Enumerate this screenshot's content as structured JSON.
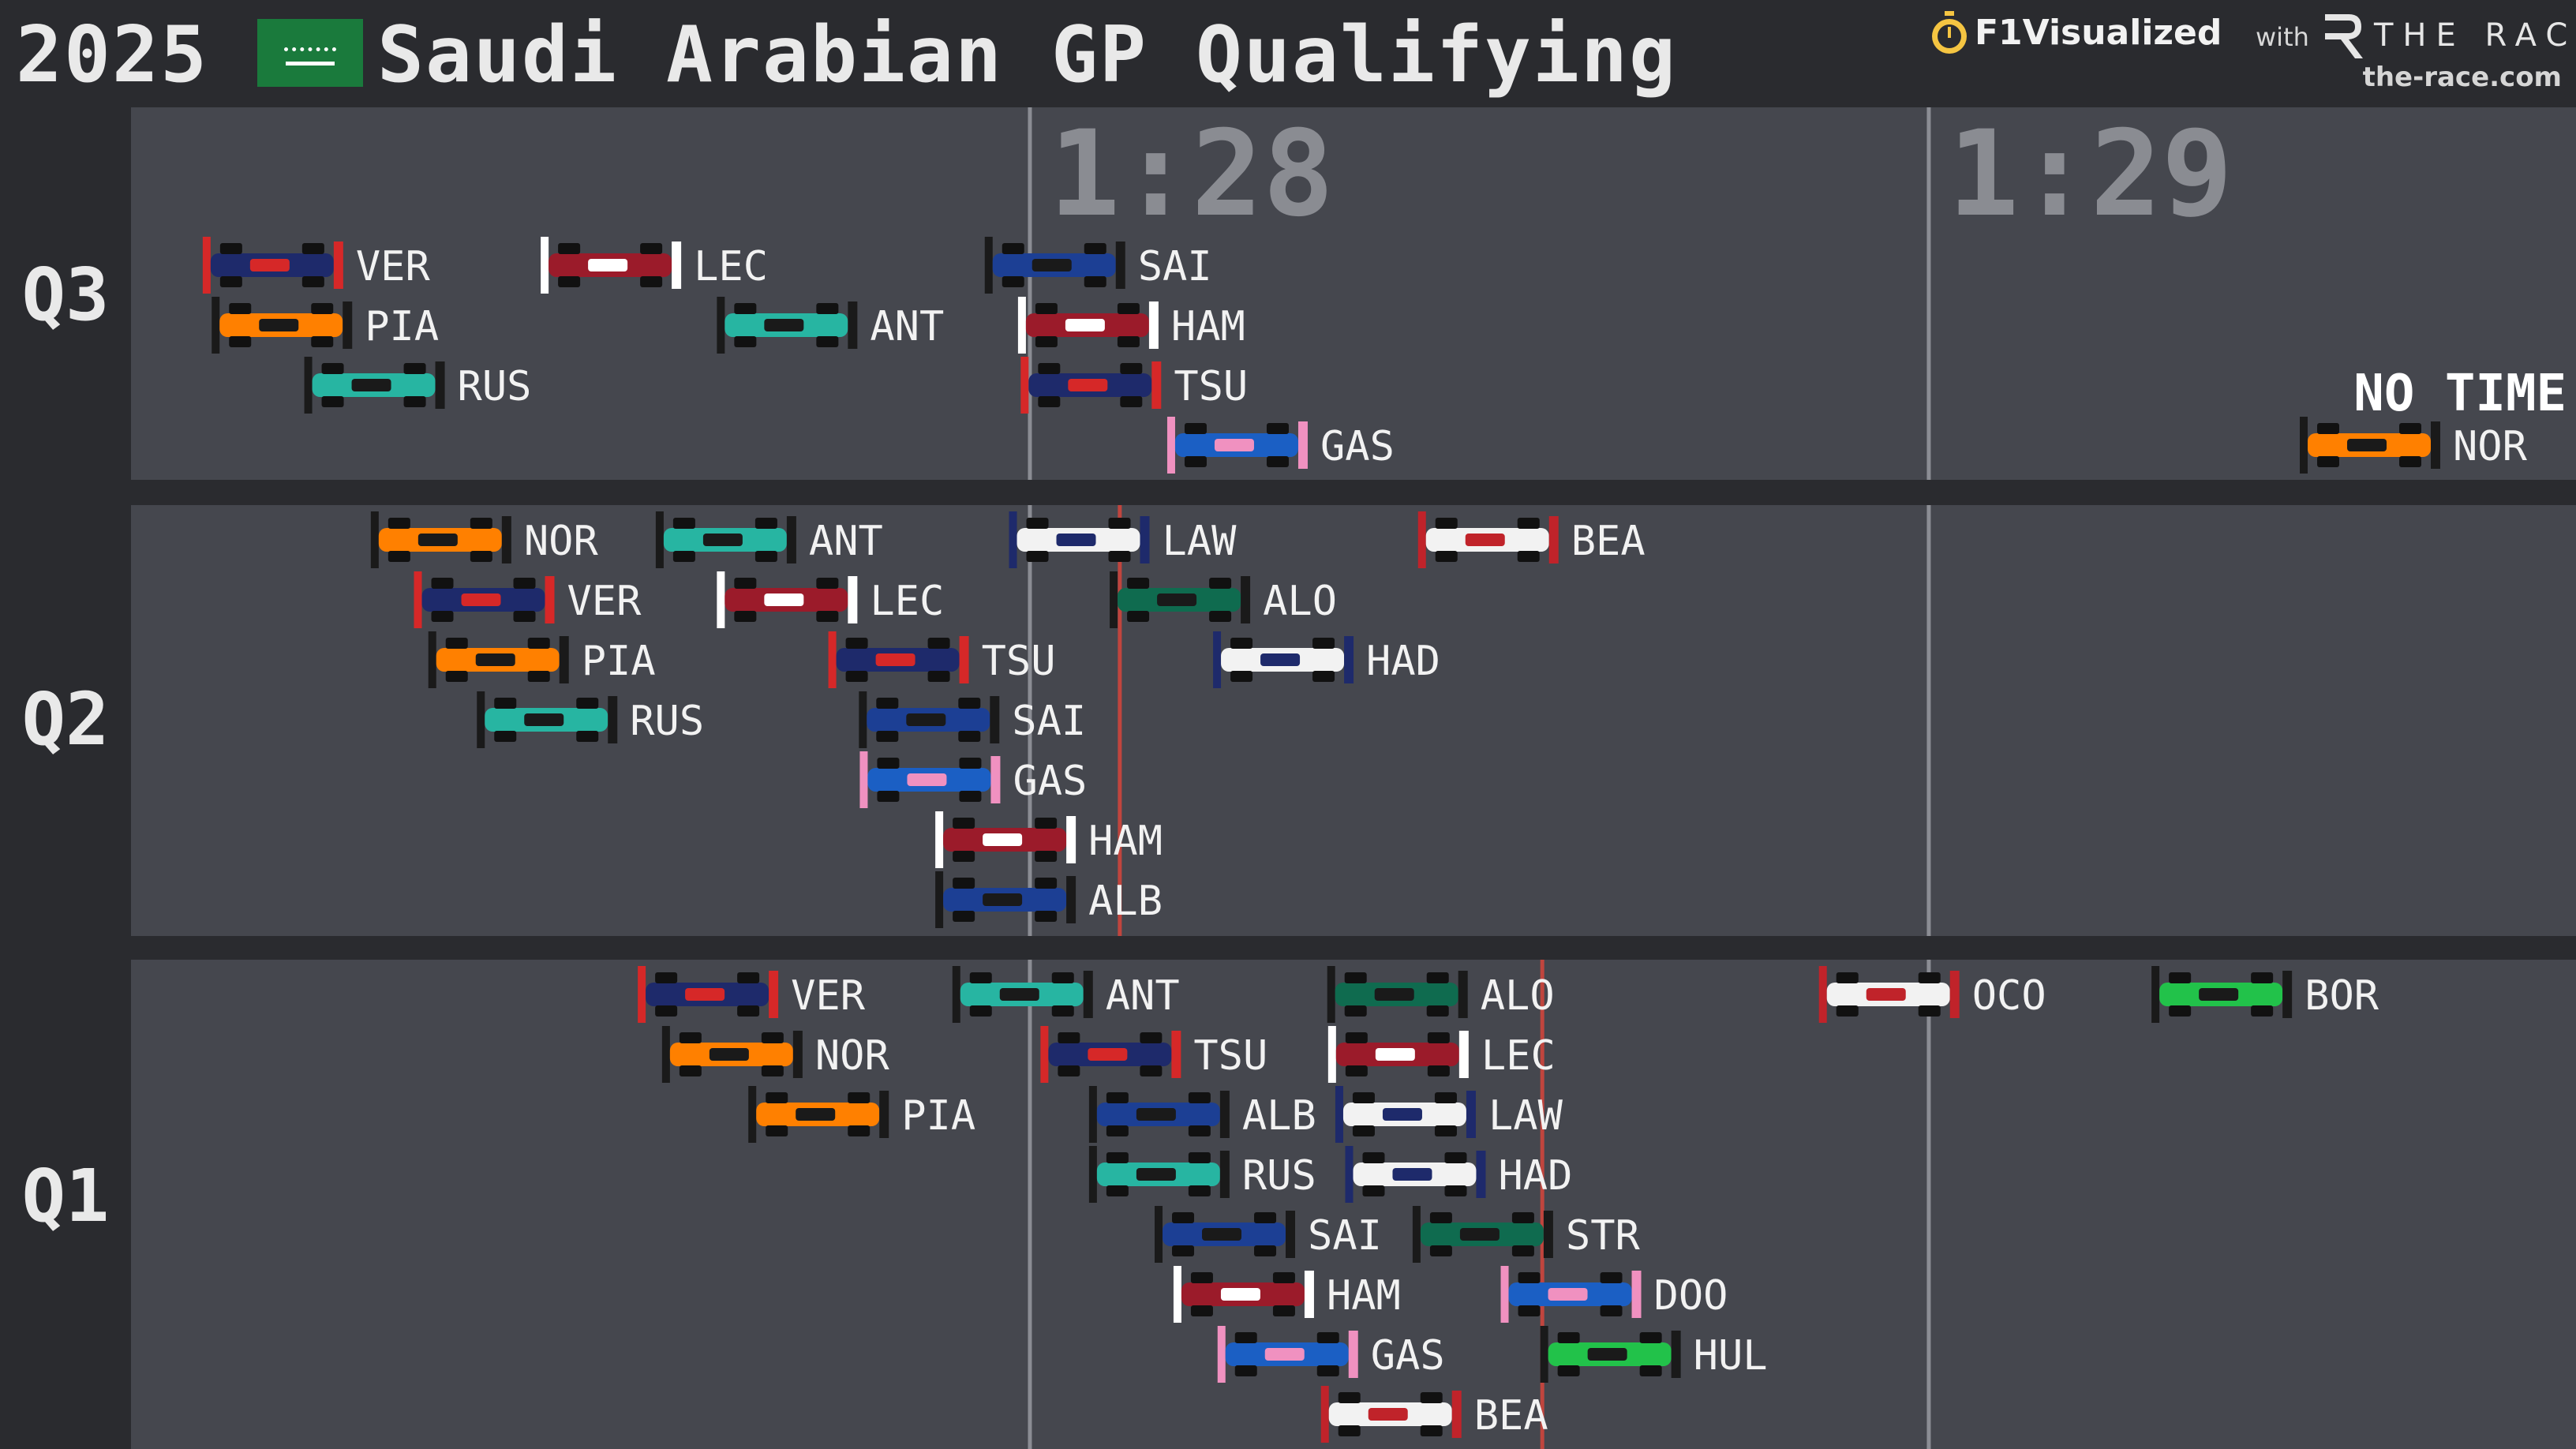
{
  "header": {
    "year": "2025",
    "title": "Saudi Arabian GP Qualifying",
    "brand_name": "F1Visualized",
    "brand_with": "with",
    "brand_partner": "THE RACE",
    "brand_url": "the-race.com",
    "flag_icon": "saudi-arabia-flag-icon"
  },
  "colors": {
    "background": "#2a2b2f",
    "panel": "#45474e",
    "gridline": "#8b8d94",
    "pole_line": "#c0453e"
  },
  "chart_data": {
    "type": "scatter",
    "title": "Saudi Arabian GP Qualifying",
    "x_axis": {
      "unit": "lap time",
      "range_seconds": [
        87.0,
        89.72
      ],
      "gridlines": [
        88,
        89
      ],
      "tick_labels": [
        "1:28",
        "1:29"
      ]
    },
    "sessions": [
      {
        "name": "Q3",
        "rows": 4,
        "cutoff_line_seconds": null,
        "drivers": [
          {
            "code": "VER",
            "time": 87.294,
            "row": 0,
            "color": "#1e2a6b",
            "accent": "#d62828"
          },
          {
            "code": "PIA",
            "time": 87.304,
            "row": 1,
            "color": "#ff8000",
            "accent": "#1a1a1a"
          },
          {
            "code": "RUS",
            "time": 87.407,
            "row": 2,
            "color": "#27b5a2",
            "accent": "#1a1a1a"
          },
          {
            "code": "LEC",
            "time": 87.67,
            "row": 0,
            "color": "#9b1b2a",
            "accent": "#ffffff"
          },
          {
            "code": "ANT",
            "time": 87.866,
            "row": 1,
            "color": "#27b5a2",
            "accent": "#1a1a1a"
          },
          {
            "code": "SAI",
            "time": 88.164,
            "row": 0,
            "color": "#1c3f94",
            "accent": "#1a1a1a"
          },
          {
            "code": "HAM",
            "time": 88.201,
            "row": 1,
            "color": "#9b1b2a",
            "accent": "#ffffff"
          },
          {
            "code": "TSU",
            "time": 88.204,
            "row": 2,
            "color": "#1e2a6b",
            "accent": "#d62828"
          },
          {
            "code": "GAS",
            "time": 88.367,
            "row": 3,
            "color": "#1b5fc4",
            "accent": "#f091c0"
          },
          {
            "code": "NOR",
            "time": null,
            "row": 3,
            "color": "#ff8000",
            "accent": "#1a1a1a",
            "label": "NO TIME"
          }
        ]
      },
      {
        "name": "Q2",
        "rows": 7,
        "cutoff_line_seconds": 88.1,
        "drivers": [
          {
            "code": "NOR",
            "time": 87.481,
            "row": 0,
            "color": "#ff8000",
            "accent": "#1a1a1a"
          },
          {
            "code": "VER",
            "time": 87.529,
            "row": 1,
            "color": "#1e2a6b",
            "accent": "#d62828"
          },
          {
            "code": "PIA",
            "time": 87.545,
            "row": 2,
            "color": "#ff8000",
            "accent": "#1a1a1a"
          },
          {
            "code": "RUS",
            "time": 87.599,
            "row": 3,
            "color": "#27b5a2",
            "accent": "#1a1a1a"
          },
          {
            "code": "ANT",
            "time": 87.798,
            "row": 0,
            "color": "#27b5a2",
            "accent": "#1a1a1a"
          },
          {
            "code": "LEC",
            "time": 87.866,
            "row": 1,
            "color": "#9b1b2a",
            "accent": "#ffffff"
          },
          {
            "code": "TSU",
            "time": 87.99,
            "row": 2,
            "color": "#1e2a6b",
            "accent": "#d62828"
          },
          {
            "code": "SAI",
            "time": 88.024,
            "row": 3,
            "color": "#1c3f94",
            "accent": "#1a1a1a"
          },
          {
            "code": "GAS",
            "time": 88.025,
            "row": 4,
            "color": "#1b5fc4",
            "accent": "#f091c0"
          },
          {
            "code": "HAM",
            "time": 88.109,
            "row": 5,
            "color": "#9b1b2a",
            "accent": "#ffffff"
          },
          {
            "code": "ALB",
            "time": 88.109,
            "row": 6,
            "color": "#1c3f94",
            "accent": "#1a1a1a"
          },
          {
            "code": "LAW",
            "time": 88.191,
            "row": 0,
            "color": "#f2f2f2",
            "accent": "#1e2a6b"
          },
          {
            "code": "ALO",
            "time": 88.303,
            "row": 1,
            "color": "#0f6b4f",
            "accent": "#1a1a1a"
          },
          {
            "code": "HAD",
            "time": 88.418,
            "row": 2,
            "color": "#f2f2f2",
            "accent": "#1e2a6b"
          },
          {
            "code": "BEA",
            "time": 88.646,
            "row": 0,
            "color": "#f2f2f2",
            "accent": "#c0232a"
          }
        ]
      },
      {
        "name": "Q1",
        "rows": 8,
        "cutoff_line_seconds": 88.57,
        "drivers": [
          {
            "code": "VER",
            "time": 87.778,
            "row": 0,
            "color": "#1e2a6b",
            "accent": "#d62828"
          },
          {
            "code": "NOR",
            "time": 87.805,
            "row": 1,
            "color": "#ff8000",
            "accent": "#1a1a1a"
          },
          {
            "code": "PIA",
            "time": 87.901,
            "row": 2,
            "color": "#ff8000",
            "accent": "#1a1a1a"
          },
          {
            "code": "ANT",
            "time": 88.128,
            "row": 0,
            "color": "#27b5a2",
            "accent": "#1a1a1a"
          },
          {
            "code": "TSU",
            "time": 88.226,
            "row": 1,
            "color": "#1e2a6b",
            "accent": "#d62828"
          },
          {
            "code": "ALB",
            "time": 88.28,
            "row": 2,
            "color": "#1c3f94",
            "accent": "#1a1a1a"
          },
          {
            "code": "RUS",
            "time": 88.28,
            "row": 3,
            "color": "#27b5a2",
            "accent": "#1a1a1a"
          },
          {
            "code": "SAI",
            "time": 88.353,
            "row": 4,
            "color": "#1c3f94",
            "accent": "#1a1a1a"
          },
          {
            "code": "HAM",
            "time": 88.374,
            "row": 5,
            "color": "#9b1b2a",
            "accent": "#ffffff"
          },
          {
            "code": "GAS",
            "time": 88.423,
            "row": 6,
            "color": "#1b5fc4",
            "accent": "#f091c0"
          },
          {
            "code": "BEA",
            "time": 88.538,
            "row": 7,
            "color": "#f2f2f2",
            "accent": "#c0232a"
          },
          {
            "code": "ALO",
            "time": 88.545,
            "row": 0,
            "color": "#0f6b4f",
            "accent": "#1a1a1a"
          },
          {
            "code": "LEC",
            "time": 88.546,
            "row": 1,
            "color": "#9b1b2a",
            "accent": "#ffffff"
          },
          {
            "code": "LAW",
            "time": 88.554,
            "row": 2,
            "color": "#f2f2f2",
            "accent": "#1e2a6b"
          },
          {
            "code": "HAD",
            "time": 88.565,
            "row": 3,
            "color": "#f2f2f2",
            "accent": "#1e2a6b"
          },
          {
            "code": "STR",
            "time": 88.64,
            "row": 4,
            "color": "#0f6b4f",
            "accent": "#1a1a1a"
          },
          {
            "code": "DOO",
            "time": 88.738,
            "row": 5,
            "color": "#1b5fc4",
            "accent": "#f091c0"
          },
          {
            "code": "HUL",
            "time": 88.782,
            "row": 6,
            "color": "#22c24a",
            "accent": "#1a1a1a"
          },
          {
            "code": "OCO",
            "time": 89.092,
            "row": 0,
            "color": "#f2f2f2",
            "accent": "#c0232a"
          },
          {
            "code": "BOR",
            "time": 89.462,
            "row": 0,
            "color": "#22c24a",
            "accent": "#1a1a1a"
          }
        ]
      }
    ]
  }
}
